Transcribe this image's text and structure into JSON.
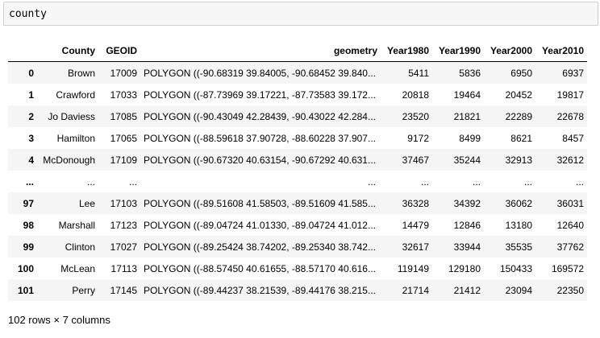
{
  "cell": {
    "code": "county"
  },
  "table": {
    "columns": [
      "",
      "County",
      "GEOID",
      "geometry",
      "Year1980",
      "Year1990",
      "Year2000",
      "Year2010"
    ],
    "rows": [
      [
        "0",
        "Brown",
        "17009",
        "POLYGON ((-90.68319 39.84005, -90.68452 39.840...",
        "5411",
        "5836",
        "6950",
        "6937"
      ],
      [
        "1",
        "Crawford",
        "17033",
        "POLYGON ((-87.73969 39.17221, -87.73583 39.172...",
        "20818",
        "19464",
        "20452",
        "19817"
      ],
      [
        "2",
        "Jo Daviess",
        "17085",
        "POLYGON ((-90.43049 42.28439, -90.43022 42.284...",
        "23520",
        "21821",
        "22289",
        "22678"
      ],
      [
        "3",
        "Hamilton",
        "17065",
        "POLYGON ((-88.59618 37.90728, -88.60228 37.907...",
        "9172",
        "8499",
        "8621",
        "8457"
      ],
      [
        "4",
        "McDonough",
        "17109",
        "POLYGON ((-90.67320 40.63154, -90.67292 40.631...",
        "37467",
        "35244",
        "32913",
        "32612"
      ],
      [
        "...",
        "...",
        "...",
        "...",
        "...",
        "...",
        "...",
        "..."
      ],
      [
        "97",
        "Lee",
        "17103",
        "POLYGON ((-89.51608 41.58503, -89.51609 41.585...",
        "36328",
        "34392",
        "36062",
        "36031"
      ],
      [
        "98",
        "Marshall",
        "17123",
        "POLYGON ((-89.04724 41.01330, -89.04724 41.012...",
        "14479",
        "12846",
        "13180",
        "12640"
      ],
      [
        "99",
        "Clinton",
        "17027",
        "POLYGON ((-89.25424 38.74202, -89.25340 38.742...",
        "32617",
        "33944",
        "35535",
        "37762"
      ],
      [
        "100",
        "McLean",
        "17113",
        "POLYGON ((-88.57450 40.61655, -88.57170 40.616...",
        "119149",
        "129180",
        "150433",
        "169572"
      ],
      [
        "101",
        "Perry",
        "17145",
        "POLYGON ((-89.44237 38.21539, -89.44176 38.215...",
        "21714",
        "21412",
        "23094",
        "22350"
      ]
    ]
  },
  "footer": {
    "summary": "102 rows × 7 columns"
  }
}
